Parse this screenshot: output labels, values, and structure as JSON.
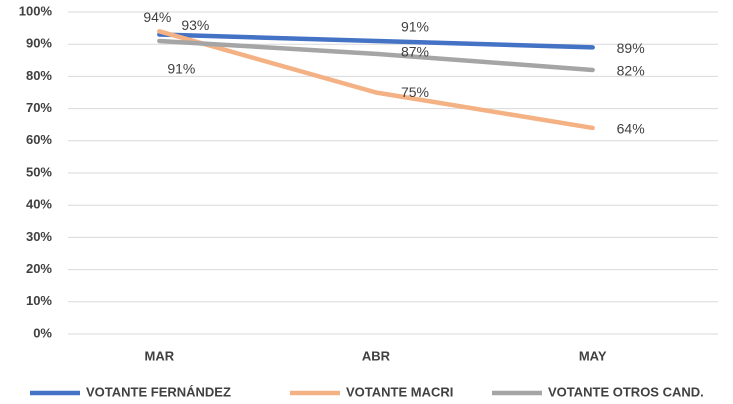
{
  "chart_data": {
    "type": "line",
    "categories": [
      "MAR",
      "ABR",
      "MAY"
    ],
    "series": [
      {
        "name": "VOTANTE FERNÁNDEZ",
        "color": "#4472c4",
        "values": [
          93,
          91,
          89
        ],
        "value_labels": [
          "93%",
          "91%",
          "89%"
        ]
      },
      {
        "name": "VOTANTE MACRI",
        "color": "#f4b183",
        "values": [
          94,
          75,
          64
        ],
        "value_labels": [
          "94%",
          "75%",
          "64%"
        ]
      },
      {
        "name": "VOTANTE OTROS CAND.",
        "color": "#a5a5a5",
        "values": [
          91,
          87,
          82
        ],
        "value_labels": [
          "91%",
          "87%",
          "82%"
        ]
      }
    ],
    "ylim": [
      0,
      100
    ],
    "yticks": [
      {
        "value": 0,
        "label": "0%"
      },
      {
        "value": 10,
        "label": "10%"
      },
      {
        "value": 20,
        "label": "20%"
      },
      {
        "value": 30,
        "label": "30%"
      },
      {
        "value": 40,
        "label": "40%"
      },
      {
        "value": 50,
        "label": "50%"
      },
      {
        "value": 60,
        "label": "60%"
      },
      {
        "value": 70,
        "label": "70%"
      },
      {
        "value": 80,
        "label": "80%"
      },
      {
        "value": 90,
        "label": "90%"
      },
      {
        "value": 100,
        "label": "100%"
      }
    ],
    "grid": true,
    "legend": "bottom"
  }
}
